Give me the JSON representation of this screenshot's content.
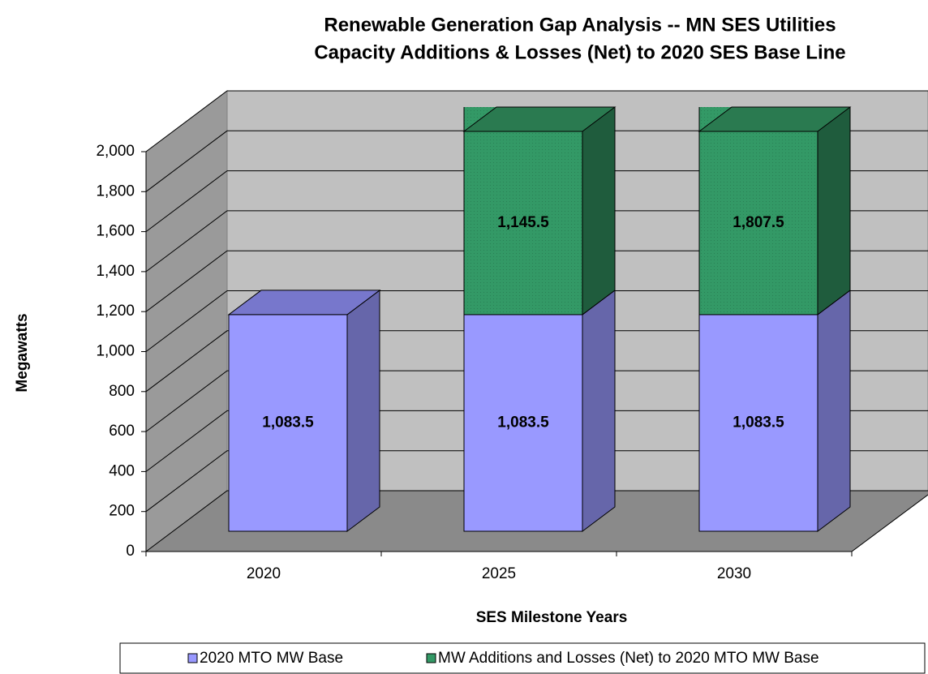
{
  "chart_data": {
    "type": "bar3d_stacked",
    "title": "Renewable Generation Gap Analysis -- MN SES Utilities",
    "subtitle": "Capacity Additions & Losses (Net) to 2020 SES Base Line",
    "y_label": "Megawatts",
    "x_label": "SES Milestone Years",
    "categories": [
      "2020",
      "2025",
      "2030"
    ],
    "series": [
      {
        "name": "2020 MTO MW Base",
        "color": "#9999ff",
        "values": [
          1083.5,
          1083.5,
          1083.5
        ],
        "value_labels": [
          "1,083.5",
          "1,083.5",
          "1,083.5"
        ]
      },
      {
        "name": "MW Additions and Losses (Net) to 2020 MTO MW Base",
        "color": "#339966",
        "values": [
          null,
          1145.5,
          1807.5
        ],
        "value_labels": [
          null,
          "1,145.5",
          "1,807.5"
        ]
      }
    ],
    "ylim": [
      0,
      2000
    ],
    "yticks": [
      0,
      200,
      400,
      600,
      800,
      {
        "value": 1000,
        "label": "1,000"
      },
      {
        "value": 1200,
        "label": "1,200"
      },
      {
        "value": 1400,
        "label": "1,400"
      },
      {
        "value": 1600,
        "label": "1,600"
      },
      {
        "value": 1800,
        "label": "1,800"
      },
      {
        "value": 2000,
        "label": "2,000"
      }
    ],
    "grid": true,
    "legend": "bottom"
  }
}
